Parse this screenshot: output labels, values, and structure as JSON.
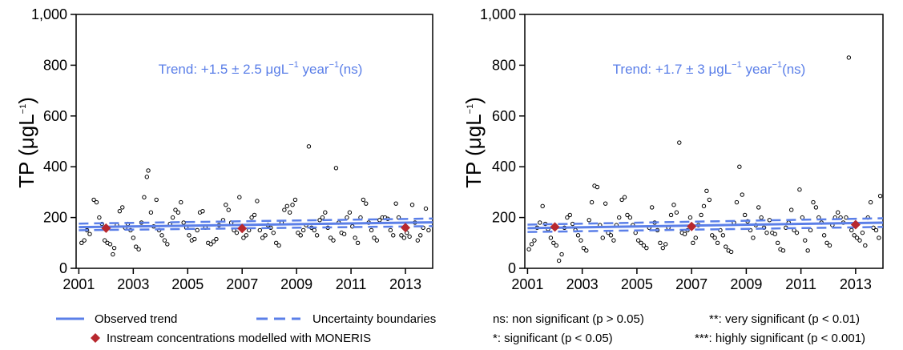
{
  "chart_data": [
    {
      "type": "scatter",
      "ylabel": {
        "main": "TP (",
        "mu": "μ",
        "gL": "gL",
        "sup": "−1",
        "close": ")"
      },
      "trend_label": {
        "prefix": "Trend: +1.5",
        "pm": " ± ",
        "value": "2.5",
        "unit": "μgL",
        "sup1": "−1",
        "year": "year",
        "sup2": "−1",
        "sig": "(ns)"
      },
      "xlim": [
        2000.9,
        2014.0
      ],
      "ylim": [
        0,
        1000
      ],
      "xticks": [
        2001,
        2003,
        2005,
        2007,
        2009,
        2011,
        2013
      ],
      "yticks": [
        0,
        200,
        400,
        600,
        800,
        1000
      ],
      "ytick_labels": [
        "0",
        "200",
        "400",
        "600",
        "800",
        "1,000"
      ],
      "trend": {
        "x": [
          2001,
          2014
        ],
        "y": [
          162,
          181
        ]
      },
      "upper": {
        "x": [
          2001,
          2014
        ],
        "y": [
          176,
          196
        ]
      },
      "lower": {
        "x": [
          2001,
          2014
        ],
        "y": [
          150,
          166
        ]
      },
      "moneris": [
        {
          "x": 2002.0,
          "y": 158
        },
        {
          "x": 2007.0,
          "y": 157
        },
        {
          "x": 2013.0,
          "y": 160
        }
      ],
      "points": [
        [
          2001.1,
          100
        ],
        [
          2001.2,
          110
        ],
        [
          2001.3,
          150
        ],
        [
          2001.4,
          135
        ],
        [
          2001.55,
          270
        ],
        [
          2001.65,
          260
        ],
        [
          2001.75,
          200
        ],
        [
          2001.85,
          175
        ],
        [
          2001.95,
          110
        ],
        [
          2002.05,
          100
        ],
        [
          2002.15,
          95
        ],
        [
          2002.25,
          55
        ],
        [
          2002.3,
          80
        ],
        [
          2002.4,
          170
        ],
        [
          2002.5,
          225
        ],
        [
          2002.6,
          240
        ],
        [
          2002.7,
          160
        ],
        [
          2002.8,
          175
        ],
        [
          2002.9,
          150
        ],
        [
          2003.0,
          120
        ],
        [
          2003.1,
          85
        ],
        [
          2003.2,
          75
        ],
        [
          2003.3,
          180
        ],
        [
          2003.4,
          280
        ],
        [
          2003.5,
          360
        ],
        [
          2003.55,
          385
        ],
        [
          2003.65,
          220
        ],
        [
          2003.75,
          165
        ],
        [
          2003.85,
          270
        ],
        [
          2003.95,
          150
        ],
        [
          2004.05,
          130
        ],
        [
          2004.15,
          110
        ],
        [
          2004.25,
          95
        ],
        [
          2004.35,
          175
        ],
        [
          2004.45,
          200
        ],
        [
          2004.55,
          230
        ],
        [
          2004.65,
          220
        ],
        [
          2004.75,
          260
        ],
        [
          2004.85,
          180
        ],
        [
          2004.95,
          160
        ],
        [
          2005.05,
          130
        ],
        [
          2005.15,
          110
        ],
        [
          2005.25,
          115
        ],
        [
          2005.35,
          150
        ],
        [
          2005.45,
          220
        ],
        [
          2005.55,
          225
        ],
        [
          2005.65,
          160
        ],
        [
          2005.75,
          100
        ],
        [
          2005.85,
          95
        ],
        [
          2005.95,
          105
        ],
        [
          2006.05,
          115
        ],
        [
          2006.15,
          170
        ],
        [
          2006.3,
          190
        ],
        [
          2006.4,
          250
        ],
        [
          2006.5,
          230
        ],
        [
          2006.6,
          180
        ],
        [
          2006.7,
          150
        ],
        [
          2006.8,
          140
        ],
        [
          2006.9,
          280
        ],
        [
          2007.05,
          120
        ],
        [
          2007.15,
          130
        ],
        [
          2007.25,
          150
        ],
        [
          2007.35,
          200
        ],
        [
          2007.45,
          210
        ],
        [
          2007.55,
          265
        ],
        [
          2007.65,
          150
        ],
        [
          2007.75,
          120
        ],
        [
          2007.85,
          130
        ],
        [
          2007.95,
          170
        ],
        [
          2008.05,
          160
        ],
        [
          2008.15,
          140
        ],
        [
          2008.25,
          100
        ],
        [
          2008.35,
          90
        ],
        [
          2008.45,
          180
        ],
        [
          2008.55,
          230
        ],
        [
          2008.65,
          245
        ],
        [
          2008.75,
          220
        ],
        [
          2008.85,
          250
        ],
        [
          2008.95,
          270
        ],
        [
          2009.05,
          140
        ],
        [
          2009.15,
          130
        ],
        [
          2009.25,
          150
        ],
        [
          2009.35,
          170
        ],
        [
          2009.45,
          480
        ],
        [
          2009.55,
          160
        ],
        [
          2009.65,
          150
        ],
        [
          2009.75,
          130
        ],
        [
          2009.85,
          190
        ],
        [
          2009.95,
          200
        ],
        [
          2010.05,
          220
        ],
        [
          2010.15,
          160
        ],
        [
          2010.25,
          120
        ],
        [
          2010.35,
          110
        ],
        [
          2010.45,
          395
        ],
        [
          2010.55,
          180
        ],
        [
          2010.65,
          140
        ],
        [
          2010.75,
          135
        ],
        [
          2010.85,
          200
        ],
        [
          2010.95,
          220
        ],
        [
          2011.05,
          165
        ],
        [
          2011.15,
          120
        ],
        [
          2011.25,
          100
        ],
        [
          2011.35,
          200
        ],
        [
          2011.45,
          270
        ],
        [
          2011.55,
          255
        ],
        [
          2011.65,
          180
        ],
        [
          2011.75,
          150
        ],
        [
          2011.85,
          120
        ],
        [
          2011.95,
          110
        ],
        [
          2012.05,
          190
        ],
        [
          2012.15,
          200
        ],
        [
          2012.25,
          200
        ],
        [
          2012.35,
          195
        ],
        [
          2012.45,
          150
        ],
        [
          2012.55,
          130
        ],
        [
          2012.65,
          255
        ],
        [
          2012.75,
          200
        ],
        [
          2012.85,
          130
        ],
        [
          2012.95,
          120
        ],
        [
          2013.05,
          140
        ],
        [
          2013.15,
          125
        ],
        [
          2013.25,
          250
        ],
        [
          2013.35,
          180
        ],
        [
          2013.45,
          110
        ],
        [
          2013.55,
          130
        ],
        [
          2013.65,
          160
        ],
        [
          2013.75,
          235
        ],
        [
          2013.85,
          150
        ]
      ]
    },
    {
      "type": "scatter",
      "ylabel": {
        "main": "TP (",
        "mu": "μ",
        "gL": "gL",
        "sup": "−1",
        "close": ")"
      },
      "trend_label": {
        "prefix": "Trend: +1.7",
        "pm": " ± ",
        "value": "3",
        "unit": "μgL",
        "sup1": "−1",
        "year": "year",
        "sup2": "−1",
        "sig": "(ns)"
      },
      "xlim": [
        2000.9,
        2014.0
      ],
      "ylim": [
        0,
        1000
      ],
      "xticks": [
        2001,
        2003,
        2005,
        2007,
        2009,
        2011,
        2013
      ],
      "yticks": [
        0,
        200,
        400,
        600,
        800,
        1000
      ],
      "ytick_labels": [
        "0",
        "200",
        "400",
        "600",
        "800",
        "1,000"
      ],
      "trend": {
        "x": [
          2001,
          2014
        ],
        "y": [
          158,
          180
        ]
      },
      "upper": {
        "x": [
          2001,
          2014
        ],
        "y": [
          172,
          197
        ]
      },
      "lower": {
        "x": [
          2001,
          2014
        ],
        "y": [
          143,
          163
        ]
      },
      "moneris": [
        {
          "x": 2002.0,
          "y": 163
        },
        {
          "x": 2007.0,
          "y": 165
        },
        {
          "x": 2013.0,
          "y": 172
        }
      ],
      "points": [
        [
          2001.05,
          75
        ],
        [
          2001.15,
          95
        ],
        [
          2001.25,
          110
        ],
        [
          2001.35,
          160
        ],
        [
          2001.45,
          180
        ],
        [
          2001.55,
          245
        ],
        [
          2001.65,
          175
        ],
        [
          2001.75,
          155
        ],
        [
          2001.85,
          120
        ],
        [
          2001.95,
          100
        ],
        [
          2002.05,
          90
        ],
        [
          2002.15,
          30
        ],
        [
          2002.25,
          55
        ],
        [
          2002.35,
          160
        ],
        [
          2002.45,
          200
        ],
        [
          2002.55,
          210
        ],
        [
          2002.65,
          175
        ],
        [
          2002.75,
          150
        ],
        [
          2002.85,
          130
        ],
        [
          2002.95,
          110
        ],
        [
          2003.05,
          80
        ],
        [
          2003.15,
          70
        ],
        [
          2003.25,
          190
        ],
        [
          2003.35,
          260
        ],
        [
          2003.45,
          325
        ],
        [
          2003.55,
          320
        ],
        [
          2003.65,
          170
        ],
        [
          2003.75,
          120
        ],
        [
          2003.85,
          255
        ],
        [
          2003.95,
          140
        ],
        [
          2004.05,
          130
        ],
        [
          2004.15,
          110
        ],
        [
          2004.25,
          170
        ],
        [
          2004.35,
          200
        ],
        [
          2004.45,
          270
        ],
        [
          2004.55,
          280
        ],
        [
          2004.65,
          210
        ],
        [
          2004.75,
          200
        ],
        [
          2004.85,
          170
        ],
        [
          2004.95,
          140
        ],
        [
          2005.05,
          110
        ],
        [
          2005.15,
          100
        ],
        [
          2005.25,
          90
        ],
        [
          2005.35,
          80
        ],
        [
          2005.45,
          160
        ],
        [
          2005.55,
          240
        ],
        [
          2005.65,
          180
        ],
        [
          2005.75,
          150
        ],
        [
          2005.85,
          100
        ],
        [
          2005.95,
          80
        ],
        [
          2006.05,
          95
        ],
        [
          2006.15,
          160
        ],
        [
          2006.25,
          210
        ],
        [
          2006.35,
          250
        ],
        [
          2006.45,
          220
        ],
        [
          2006.55,
          495
        ],
        [
          2006.65,
          140
        ],
        [
          2006.75,
          135
        ],
        [
          2006.85,
          150
        ],
        [
          2006.95,
          200
        ],
        [
          2007.05,
          100
        ],
        [
          2007.15,
          120
        ],
        [
          2007.25,
          170
        ],
        [
          2007.35,
          210
        ],
        [
          2007.45,
          245
        ],
        [
          2007.55,
          305
        ],
        [
          2007.65,
          270
        ],
        [
          2007.75,
          130
        ],
        [
          2007.85,
          120
        ],
        [
          2007.95,
          100
        ],
        [
          2008.05,
          150
        ],
        [
          2008.15,
          130
        ],
        [
          2008.25,
          85
        ],
        [
          2008.35,
          70
        ],
        [
          2008.45,
          65
        ],
        [
          2008.55,
          180
        ],
        [
          2008.65,
          260
        ],
        [
          2008.75,
          400
        ],
        [
          2008.85,
          290
        ],
        [
          2008.95,
          210
        ],
        [
          2009.05,
          185
        ],
        [
          2009.15,
          150
        ],
        [
          2009.25,
          120
        ],
        [
          2009.35,
          170
        ],
        [
          2009.45,
          240
        ],
        [
          2009.55,
          200
        ],
        [
          2009.65,
          160
        ],
        [
          2009.75,
          140
        ],
        [
          2009.85,
          190
        ],
        [
          2009.95,
          140
        ],
        [
          2010.05,
          135
        ],
        [
          2010.15,
          100
        ],
        [
          2010.25,
          75
        ],
        [
          2010.35,
          70
        ],
        [
          2010.45,
          160
        ],
        [
          2010.55,
          180
        ],
        [
          2010.65,
          230
        ],
        [
          2010.75,
          150
        ],
        [
          2010.85,
          140
        ],
        [
          2010.95,
          310
        ],
        [
          2011.05,
          200
        ],
        [
          2011.15,
          110
        ],
        [
          2011.25,
          70
        ],
        [
          2011.35,
          150
        ],
        [
          2011.45,
          260
        ],
        [
          2011.55,
          240
        ],
        [
          2011.65,
          200
        ],
        [
          2011.75,
          180
        ],
        [
          2011.85,
          130
        ],
        [
          2011.95,
          100
        ],
        [
          2012.05,
          90
        ],
        [
          2012.15,
          170
        ],
        [
          2012.25,
          200
        ],
        [
          2012.35,
          220
        ],
        [
          2012.45,
          200
        ],
        [
          2012.55,
          180
        ],
        [
          2012.65,
          200
        ],
        [
          2012.75,
          830
        ],
        [
          2012.85,
          150
        ],
        [
          2012.95,
          130
        ],
        [
          2013.05,
          120
        ],
        [
          2013.15,
          110
        ],
        [
          2013.25,
          140
        ],
        [
          2013.35,
          90
        ],
        [
          2013.45,
          200
        ],
        [
          2013.55,
          260
        ],
        [
          2013.65,
          160
        ],
        [
          2013.75,
          150
        ],
        [
          2013.85,
          120
        ],
        [
          2013.9,
          285
        ]
      ]
    }
  ],
  "legend_left": {
    "observed": "Observed trend",
    "uncertainty": "Uncertainty boundaries",
    "moneris": "Instream concentrations modelled with MONERIS"
  },
  "legend_right": {
    "ns": "ns: non significant (p > 0.05)",
    "sig1": "*: significant (p < 0.05)",
    "sig2": "**: very significant (p < 0.01)",
    "sig3": "***: highly significant (p < 0.001)"
  },
  "colors": {
    "trend": "#5b7fe8",
    "marker": "#b8282e",
    "axis": "#000000"
  }
}
